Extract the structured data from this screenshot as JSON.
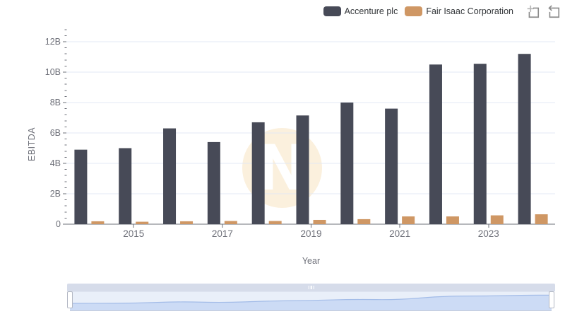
{
  "legend": {
    "items": [
      {
        "label": "Accenture plc",
        "color": "#474a57"
      },
      {
        "label": "Fair Isaac Corporation",
        "color": "#cf9764"
      }
    ]
  },
  "toolbox": {
    "icons": [
      {
        "name": "zoom-select",
        "glyph": "box-with-plus"
      },
      {
        "name": "restore",
        "glyph": "box-with-back-arrow"
      }
    ]
  },
  "chart_data": {
    "type": "bar",
    "title": "",
    "categories": [
      "2014",
      "2015",
      "2016",
      "2017",
      "2018",
      "2019",
      "2020",
      "2021",
      "2022",
      "2023",
      "2024"
    ],
    "series": [
      {
        "name": "Accenture plc",
        "color": "#474a57",
        "unit": "B",
        "values": [
          4.9,
          5.0,
          6.3,
          5.4,
          6.7,
          7.15,
          8.0,
          7.6,
          10.5,
          10.55,
          11.2
        ]
      },
      {
        "name": "Fair Isaac Corporation",
        "color": "#cf9764",
        "unit": "B",
        "values": [
          0.19,
          0.16,
          0.19,
          0.21,
          0.21,
          0.28,
          0.33,
          0.51,
          0.51,
          0.58,
          0.65
        ]
      }
    ],
    "xlabel": "Year",
    "ylabel": "EBITDA",
    "ylim": [
      0,
      12
    ],
    "y_tick_step": 2,
    "y_minor_step": 0.4,
    "y_tick_labels": [
      "0",
      "2B",
      "4B",
      "6B",
      "8B",
      "10B",
      "12B"
    ],
    "x_labeled_categories": [
      "2015",
      "2017",
      "2019",
      "2021",
      "2023"
    ],
    "grid": true,
    "legend_position": "top-right"
  },
  "datazoom": {
    "grip_icon": "drag-handle-dots",
    "preview_series": "Accenture plc",
    "range_percent": [
      0,
      100
    ]
  },
  "watermark": {
    "letter": "N",
    "color": "#fbf0dd"
  },
  "colors": {
    "axis_text": "#6e7079",
    "grid_line": "#e3e9f4",
    "axis_line": "#6e7079",
    "legend_text": "#333639",
    "toolbox_icon": "#8c8c8c",
    "toolbox_icon_light": "#b5b5b5",
    "datazoom_area_fill": "#ccdbf5",
    "datazoom_line": "#a3bce8",
    "datazoom_bg": "#e9eff9",
    "datazoom_strip": "#d6dcea"
  }
}
